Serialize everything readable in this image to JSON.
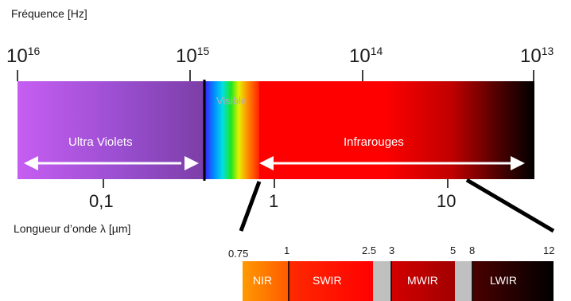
{
  "frequency_axis": {
    "label": "Fréquence [Hz]",
    "ticks": [
      {
        "base": "10",
        "exp": "16"
      },
      {
        "base": "10",
        "exp": "15"
      },
      {
        "base": "10",
        "exp": "14"
      },
      {
        "base": "10",
        "exp": "13"
      }
    ]
  },
  "wavelength_axis": {
    "label": "Longueur d’onde λ [µm]",
    "ticks": [
      "0,1",
      "1",
      "10"
    ]
  },
  "spectrum": {
    "visible_label": "Visible",
    "uv_label": "Ultra Violets",
    "ir_label": "Infrarouges",
    "colors": {
      "uv_start": "#c85ff0",
      "uv_end": "#7a3ea8",
      "red": "#ff0000",
      "black": "#000000"
    }
  },
  "ir_bands": {
    "ticks": [
      "0.75",
      "1",
      "2.5",
      "3",
      "5",
      "8",
      "12"
    ],
    "bands": [
      {
        "label": "NIR",
        "color": "#ff8a00"
      },
      {
        "label": "SWIR",
        "color": "#ff1a00"
      },
      {
        "label": "MWIR",
        "color": "#c00000"
      },
      {
        "label": "LWIR",
        "color": "#2a0000"
      }
    ],
    "gap_color": "#c0c0c0"
  }
}
